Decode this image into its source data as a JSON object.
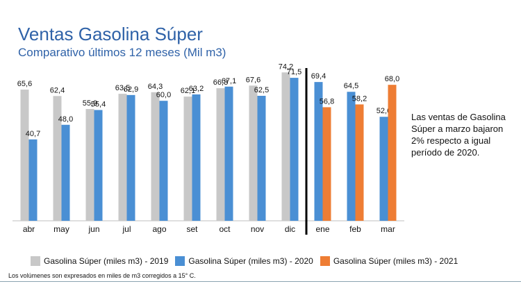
{
  "header": {
    "title": "Ventas Gasolina Súper",
    "subtitle": "Comparativo últimos 12 meses (Mil m3)"
  },
  "note": "Las ventas de Gasolina Súper a marzo bajaron 2% respecto a igual período de 2020.",
  "footnote": "Los volúmenes son expresados en miles de m3 corregidos a 15° C.",
  "colors": {
    "s2019": "#c8c8c8",
    "s2020": "#4a8fd4",
    "s2021": "#ee7d34"
  },
  "chart_data": {
    "type": "bar",
    "title": "Ventas Gasolina Súper",
    "subtitle": "Comparativo últimos 12 meses (Mil m3)",
    "categories": [
      "abr",
      "may",
      "jun",
      "jul",
      "ago",
      "set",
      "oct",
      "nov",
      "dic",
      "ene",
      "feb",
      "mar"
    ],
    "series": [
      {
        "name": "Gasolina Súper (miles m3) - 2019",
        "color": "#c8c8c8",
        "values": [
          65.6,
          62.4,
          55.9,
          63.5,
          64.3,
          62.1,
          66.3,
          67.6,
          74.2,
          null,
          null,
          null
        ]
      },
      {
        "name": "Gasolina Súper (miles m3) - 2020",
        "color": "#4a8fd4",
        "values": [
          40.7,
          48.0,
          55.4,
          62.9,
          60.0,
          63.2,
          67.1,
          62.5,
          71.5,
          69.4,
          64.5,
          52.0
        ]
      },
      {
        "name": "Gasolina Súper (miles m3) - 2021",
        "color": "#ee7d34",
        "values": [
          null,
          null,
          null,
          null,
          null,
          null,
          null,
          null,
          null,
          56.8,
          58.2,
          68.0
        ]
      }
    ],
    "labels": [
      [
        "65,6",
        "62,4",
        "55,9",
        "63,5",
        "64,3",
        "62,1",
        "66,3",
        "67,6",
        "74,2",
        "",
        "",
        ""
      ],
      [
        "40,7",
        "48,0",
        "55,4",
        "62,9",
        "60,0",
        "63,2",
        "67,1",
        "62,5",
        "71,5",
        "69,4",
        "64,5",
        "52,0"
      ],
      [
        "",
        "",
        "",
        "",
        "",
        "",
        "",
        "",
        "",
        "56,8",
        "58,2",
        "68,0"
      ]
    ],
    "ylim": [
      0,
      80
    ],
    "grid": false,
    "legend": "bottom",
    "separator_before": "ene"
  }
}
